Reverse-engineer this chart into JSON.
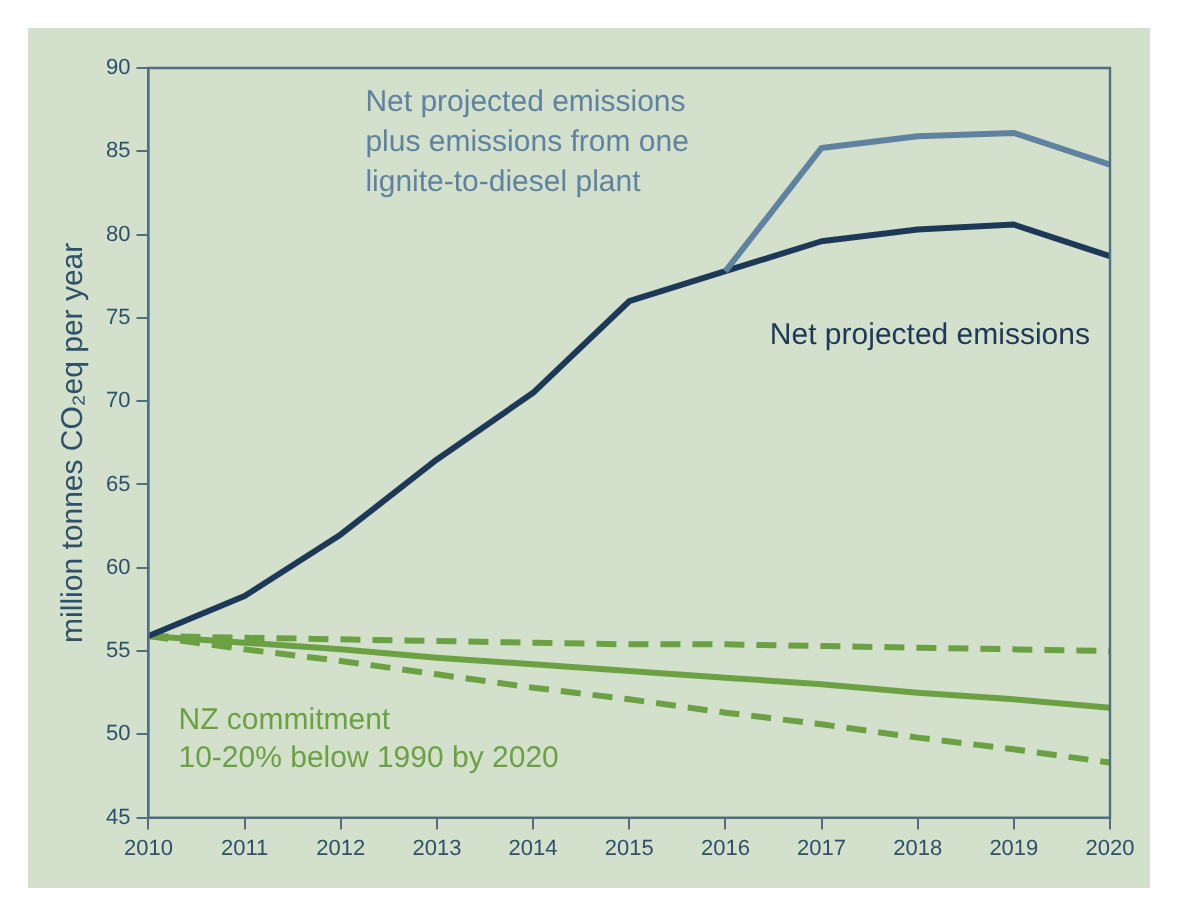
{
  "chart_data": {
    "type": "line",
    "ylabel": "million tonnes CO₂eq per year",
    "x": [
      2010,
      2011,
      2012,
      2013,
      2014,
      2015,
      2016,
      2017,
      2018,
      2019,
      2020
    ],
    "series": [
      {
        "name": "Net projected emissions plus emissions from one lignite-to-diesel plant",
        "color": "#5f82a0",
        "values": [
          null,
          null,
          null,
          null,
          null,
          null,
          77.8,
          85.2,
          85.9,
          86.1,
          84.2
        ]
      },
      {
        "name": "Net projected emissions",
        "color": "#1d3957",
        "values": [
          55.9,
          58.3,
          62,
          66.5,
          70.5,
          76,
          77.8,
          79.6,
          80.3,
          80.6,
          78.7
        ]
      },
      {
        "color": "#6ba143",
        "values": [
          55.9,
          55.5,
          55.1,
          54.6,
          54.2,
          53.8,
          53.4,
          53.0,
          52.5,
          52.1,
          51.6
        ]
      },
      {
        "color": "#6ba143",
        "line_style": "dashed",
        "values": [
          55.9,
          55.8,
          55.7,
          55.6,
          55.5,
          55.4,
          55.4,
          55.3,
          55.2,
          55.1,
          55.0
        ]
      },
      {
        "color": "#6ba143",
        "line_style": "dashed",
        "values": [
          55.9,
          55.1,
          54.4,
          53.6,
          52.8,
          52.1,
          51.3,
          50.6,
          49.8,
          49.1,
          48.3
        ]
      }
    ],
    "xlim": [
      2010,
      2020
    ],
    "xticks": [
      2010,
      2011,
      2012,
      2013,
      2014,
      2015,
      2016,
      2017,
      2018,
      2019,
      2020
    ],
    "ylim": [
      45,
      90
    ],
    "yticks": [
      45,
      50,
      55,
      60,
      65,
      70,
      75,
      80,
      85,
      90
    ],
    "annotations": [
      "NZ commitment",
      "10-20% below 1990 by 2020"
    ],
    "grid": false,
    "legend": false,
    "marker": "none"
  }
}
